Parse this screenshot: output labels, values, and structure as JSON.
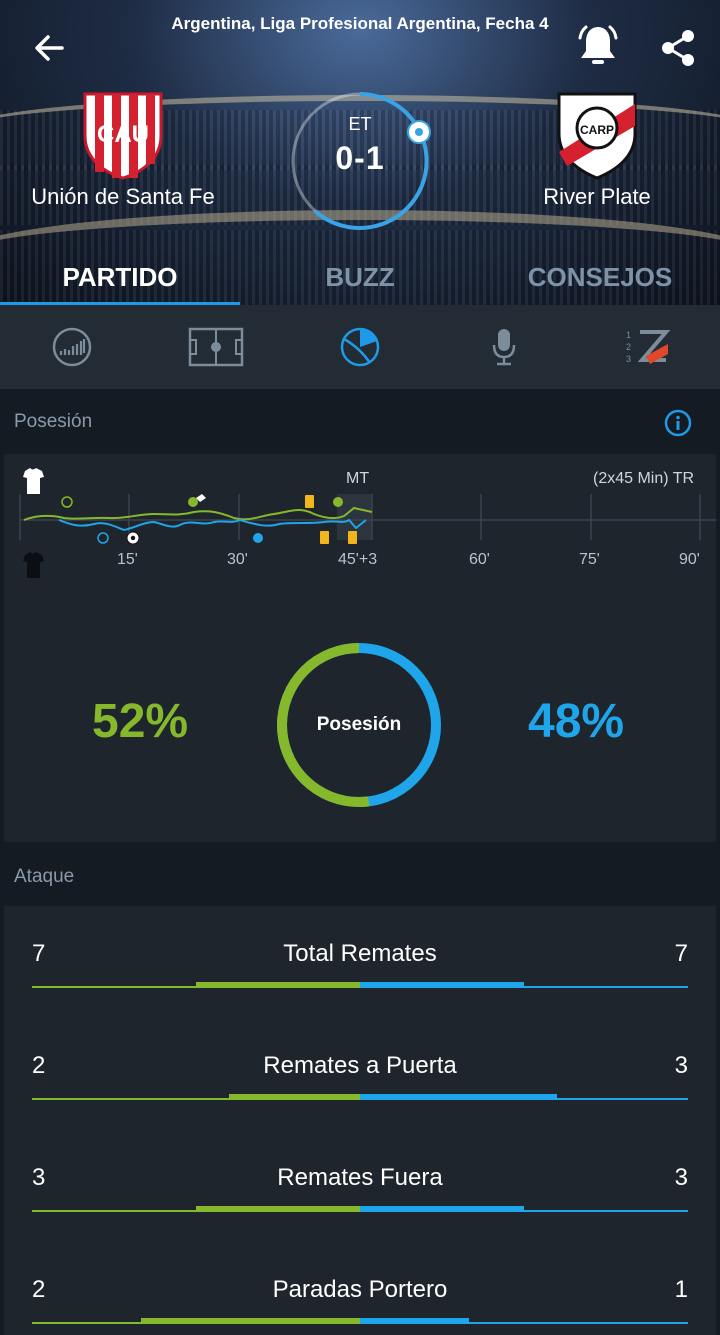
{
  "header": {
    "competition": "Argentina, Liga Profesional Argentina, Fecha 4",
    "home_team": "Unión de Santa Fe",
    "away_team": "River Plate",
    "period": "ET",
    "score": "0-1",
    "home_crest_letters": "CAU",
    "away_crest_letters": "CARP"
  },
  "icons": {
    "back": "arrow-left-icon",
    "bell": "bell-icon",
    "share": "share-icon"
  },
  "tabs": [
    {
      "label": "PARTIDO",
      "active": true
    },
    {
      "label": "BUZZ",
      "active": false
    },
    {
      "label": "CONSEJOS",
      "active": false
    }
  ],
  "iconbar": [
    "momentum-chart-icon",
    "pitch-icon",
    "stats-pie-icon",
    "microphone-icon",
    "live-ranking-icon"
  ],
  "possession": {
    "section_label": "Posesión",
    "half_label": "MT",
    "duration_label": "(2x45 Min) TR",
    "ticks": [
      "15'",
      "30'",
      "45'+3",
      "60'",
      "75'",
      "90'"
    ],
    "home_percent": "52%",
    "away_percent": "48%",
    "home_value": 52,
    "away_value": 48,
    "donut_label": "Posesión"
  },
  "attack": {
    "section_label": "Ataque",
    "stats": [
      {
        "name": "Total Remates",
        "home": "7",
        "away": "7",
        "home_n": 7,
        "away_n": 7
      },
      {
        "name": "Remates a Puerta",
        "home": "2",
        "away": "3",
        "home_n": 2,
        "away_n": 3
      },
      {
        "name": "Remates Fuera",
        "home": "3",
        "away": "3",
        "home_n": 3,
        "away_n": 3
      },
      {
        "name": "Paradas Portero",
        "home": "2",
        "away": "1",
        "home_n": 2,
        "away_n": 1
      }
    ]
  },
  "colors": {
    "home": "#86b82b",
    "away": "#1fa5ea",
    "accent": "#1e9be8",
    "yellow_card": "#f2b51c"
  }
}
